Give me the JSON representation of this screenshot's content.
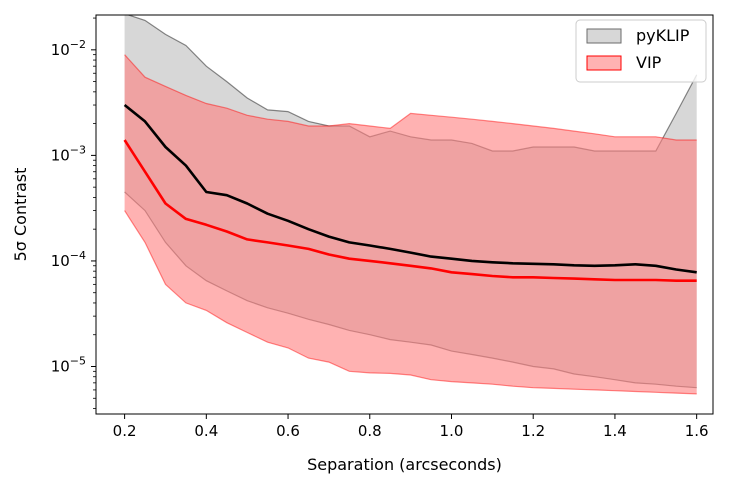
{
  "chart_data": {
    "type": "area",
    "xlabel": "Separation (arcseconds)",
    "ylabel": "5σ Contrast",
    "xlim": [
      0.13,
      1.64
    ],
    "ylim_log10": [
      -5.45,
      -1.67
    ],
    "y_scale": "log",
    "x_ticks": [
      "0.2",
      "0.4",
      "0.6",
      "0.8",
      "1.0",
      "1.2",
      "1.4",
      "1.6"
    ],
    "y_ticks": [
      {
        "label_base": "10",
        "label_exp": "−2",
        "log10": -2
      },
      {
        "label_base": "10",
        "label_exp": "−3",
        "log10": -3
      },
      {
        "label_base": "10",
        "label_exp": "−4",
        "log10": -4
      },
      {
        "label_base": "10",
        "label_exp": "−5",
        "log10": -5
      }
    ],
    "legend": {
      "placement": "top-right",
      "entries": [
        "pyKLIP",
        "VIP"
      ]
    },
    "series": [
      {
        "name": "pyKLIP",
        "color": "#000000",
        "fill": "#bdbdbd",
        "x": [
          0.2,
          0.25,
          0.3,
          0.35,
          0.4,
          0.45,
          0.5,
          0.55,
          0.6,
          0.65,
          0.7,
          0.75,
          0.8,
          0.85,
          0.9,
          0.95,
          1.0,
          1.05,
          1.1,
          1.15,
          1.2,
          1.25,
          1.3,
          1.35,
          1.4,
          1.45,
          1.5,
          1.55,
          1.6
        ],
        "median": [
          0.003,
          0.0021,
          0.0012,
          0.0008,
          0.00045,
          0.00042,
          0.00035,
          0.00028,
          0.00024,
          0.0002,
          0.00017,
          0.00015,
          0.00014,
          0.00013,
          0.00012,
          0.00011,
          0.000105,
          0.0001,
          9.7e-05,
          9.5e-05,
          9.4e-05,
          9.3e-05,
          9.1e-05,
          9e-05,
          9.1e-05,
          9.3e-05,
          9e-05,
          8.3e-05,
          7.8e-05
        ],
        "upper": [
          0.022,
          0.019,
          0.014,
          0.011,
          0.007,
          0.005,
          0.0035,
          0.0027,
          0.0026,
          0.0021,
          0.0019,
          0.0019,
          0.0015,
          0.0017,
          0.0015,
          0.0014,
          0.0014,
          0.0013,
          0.0011,
          0.0011,
          0.0012,
          0.0012,
          0.0012,
          0.0011,
          0.0011,
          0.0011,
          0.0011,
          0.0025,
          0.0058
        ],
        "lower": [
          0.00045,
          0.0003,
          0.00015,
          9e-05,
          6.5e-05,
          5.2e-05,
          4.2e-05,
          3.6e-05,
          3.2e-05,
          2.8e-05,
          2.5e-05,
          2.2e-05,
          2e-05,
          1.8e-05,
          1.7e-05,
          1.6e-05,
          1.4e-05,
          1.3e-05,
          1.2e-05,
          1.1e-05,
          1e-05,
          9.5e-06,
          8.5e-06,
          8e-06,
          7.5e-06,
          7e-06,
          6.8e-06,
          6.5e-06,
          6.3e-06
        ]
      },
      {
        "name": "VIP",
        "color": "#ff0000",
        "fill": "#ff7f7f",
        "x": [
          0.2,
          0.25,
          0.3,
          0.35,
          0.4,
          0.45,
          0.5,
          0.55,
          0.6,
          0.65,
          0.7,
          0.75,
          0.8,
          0.85,
          0.9,
          0.95,
          1.0,
          1.05,
          1.1,
          1.15,
          1.2,
          1.25,
          1.3,
          1.35,
          1.4,
          1.45,
          1.5,
          1.55,
          1.6
        ],
        "median": [
          0.0014,
          0.0007,
          0.00035,
          0.00025,
          0.00022,
          0.00019,
          0.00016,
          0.00015,
          0.00014,
          0.00013,
          0.000115,
          0.000105,
          0.0001,
          9.5e-05,
          9e-05,
          8.5e-05,
          7.8e-05,
          7.5e-05,
          7.2e-05,
          7e-05,
          7e-05,
          6.9e-05,
          6.8e-05,
          6.7e-05,
          6.6e-05,
          6.6e-05,
          6.6e-05,
          6.5e-05,
          6.5e-05
        ],
        "upper": [
          0.009,
          0.0055,
          0.0045,
          0.0037,
          0.0031,
          0.0028,
          0.0024,
          0.0022,
          0.0021,
          0.0019,
          0.0019,
          0.002,
          0.0019,
          0.0018,
          0.0025,
          0.0024,
          0.0023,
          0.0022,
          0.0021,
          0.002,
          0.0019,
          0.0018,
          0.0017,
          0.0016,
          0.0015,
          0.0015,
          0.0015,
          0.0014,
          0.0014
        ],
        "lower": [
          0.0003,
          0.00015,
          6e-05,
          4e-05,
          3.4e-05,
          2.6e-05,
          2.1e-05,
          1.7e-05,
          1.5e-05,
          1.2e-05,
          1.1e-05,
          9e-06,
          8.7e-06,
          8.6e-06,
          8.3e-06,
          7.5e-06,
          7.2e-06,
          7e-06,
          6.8e-06,
          6.5e-06,
          6.3e-06,
          6.2e-06,
          6.1e-06,
          6e-06,
          5.9e-06,
          5.8e-06,
          5.7e-06,
          5.6e-06,
          5.5e-06
        ]
      }
    ]
  }
}
